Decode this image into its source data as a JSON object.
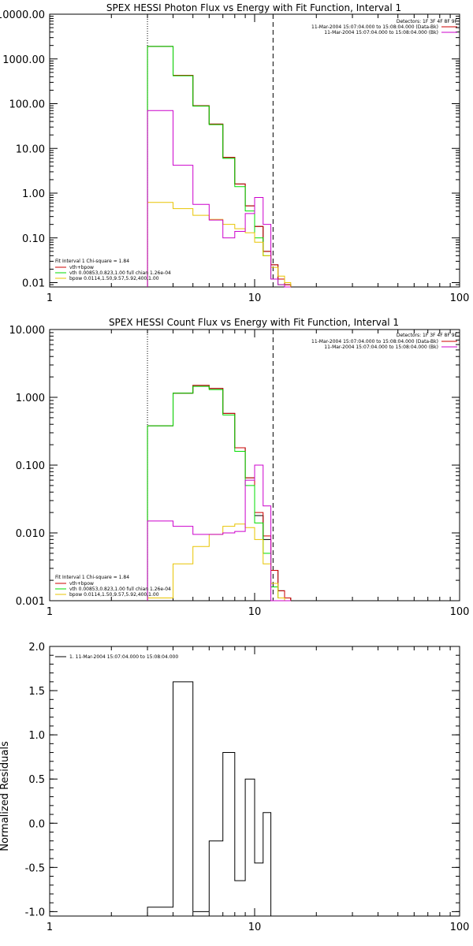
{
  "colors": {
    "data": "#000000",
    "total": "#cc0000",
    "vth": "#00dd00",
    "bpow": "#e8c400",
    "bkg": "#cc00cc"
  },
  "chart_data": [
    {
      "type": "line",
      "title": "SPEX HESSI Photon Flux vs Energy with Fit Function, Interval 1",
      "xscale": "log",
      "yscale": "log",
      "xlim": [
        1,
        100
      ],
      "ylim": [
        0.008,
        10000
      ],
      "xticks": [
        1,
        10,
        100
      ],
      "xtick_labels": [
        "1",
        "10",
        "100"
      ],
      "yticks": [
        0.01,
        0.1,
        1,
        10,
        100,
        1000,
        10000
      ],
      "ytick_labels": [
        "0.01",
        "0.10",
        "1.00",
        "10.00",
        "100.00",
        "1000.00",
        "10000.00"
      ],
      "vlines": [
        {
          "x": 3,
          "style": "dotted"
        },
        {
          "x": 12.3,
          "style": "dashed"
        }
      ],
      "bin_edges": [
        3,
        4,
        5,
        6,
        7,
        8,
        9,
        10,
        11,
        12,
        13,
        14,
        15
      ],
      "detectors_text": "Detectors: 1F 3F 4F 8F 9F",
      "legend_top": [
        {
          "text": "11-Mar-2004 15:07:04.000 to 15:08:04.000 (Data-Bk)",
          "color": "#cc0000"
        },
        {
          "text": "11-Mar-2004 15:07:04.000 to 15:08:04.000 (Bk)",
          "color": "#cc00cc"
        }
      ],
      "legend_bottom_header": "Fit Interval 1    Chi-square = 1.84",
      "legend_bottom": [
        {
          "text": "vth+bpow",
          "color": "#cc0000"
        },
        {
          "text": "vth 0.00853,0.823,1.00  full chian 1.26e-04",
          "color": "#00dd00"
        },
        {
          "text": "bpow 0.0114,1.50,9.57,5.92,400,1.00",
          "color": "#e8c400"
        }
      ],
      "series": [
        {
          "key": "data",
          "values": [
            1900,
            430,
            90,
            35,
            6.3,
            1.6,
            0.52,
            0.18,
            0.05,
            0.025,
            0.012,
            0.009
          ]
        },
        {
          "key": "total",
          "values": [
            1900,
            430,
            90,
            35,
            6.3,
            1.6,
            0.52,
            0.18,
            0.05,
            0.025,
            0.012,
            0.009
          ]
        },
        {
          "key": "vth",
          "values": [
            1900,
            420,
            88,
            34,
            6.0,
            1.4,
            0.4,
            0.1,
            0.04,
            0.012,
            0.009,
            0.008
          ]
        },
        {
          "key": "bpow",
          "values": [
            0.62,
            0.45,
            0.32,
            0.26,
            0.2,
            0.16,
            0.13,
            0.08,
            0.04,
            0.022,
            0.014,
            0.01
          ]
        },
        {
          "key": "bkg",
          "values": [
            70,
            4.2,
            0.56,
            0.25,
            0.1,
            0.14,
            0.35,
            0.8,
            0.2,
            0.012,
            0.009,
            0.008
          ]
        }
      ]
    },
    {
      "type": "line",
      "title": "SPEX HESSI Count Flux vs Energy with Fit Function, Interval 1",
      "xscale": "log",
      "yscale": "log",
      "xlim": [
        1,
        100
      ],
      "ylim": [
        0.001,
        10
      ],
      "xticks": [
        1,
        10,
        100
      ],
      "xtick_labels": [
        "1",
        "10",
        "100"
      ],
      "yticks": [
        0.001,
        0.01,
        0.1,
        1,
        10
      ],
      "ytick_labels": [
        "0.001",
        "0.010",
        "0.100",
        "1.000",
        "10.000"
      ],
      "vlines": [
        {
          "x": 3,
          "style": "dotted"
        },
        {
          "x": 12.3,
          "style": "dashed"
        }
      ],
      "bin_edges": [
        3,
        4,
        5,
        6,
        7,
        8,
        9,
        10,
        11,
        12,
        13,
        14,
        15
      ],
      "detectors_text": "Detectors: 1F 3F 4F 8F 9F",
      "legend_top": [
        {
          "text": "11-Mar-2004 15:07:04.000 to 15:08:04.000 (Data-Bk)",
          "color": "#cc0000"
        },
        {
          "text": "11-Mar-2004 15:07:04.000 to 15:08:04.000 (Bk)",
          "color": "#cc00cc"
        }
      ],
      "legend_bottom_header": "Fit Interval 1    Chi-square = 1.84",
      "legend_bottom": [
        {
          "text": "vth+bpow",
          "color": "#cc0000"
        },
        {
          "text": "vth 0.00853,0.823,1.00  full chian 1.26e-04",
          "color": "#00dd00"
        },
        {
          "text": "bpow 0.0114,1.50,9.57,5.92,400,1.00",
          "color": "#e8c400"
        }
      ],
      "series": [
        {
          "key": "data",
          "values": [
            0.38,
            1.15,
            1.5,
            1.35,
            0.58,
            0.18,
            0.065,
            0.018,
            0.008,
            0.0028,
            0.0014,
            0.0011
          ]
        },
        {
          "key": "total",
          "values": [
            0.38,
            1.15,
            1.5,
            1.35,
            0.58,
            0.18,
            0.065,
            0.02,
            0.009,
            0.0028,
            0.0014,
            0.0011
          ]
        },
        {
          "key": "vth",
          "values": [
            0.38,
            1.15,
            1.45,
            1.3,
            0.55,
            0.16,
            0.05,
            0.014,
            0.005,
            0.0016,
            0.0011,
            0.001
          ]
        },
        {
          "key": "bpow",
          "values": [
            0.0011,
            0.0035,
            0.0063,
            0.0095,
            0.0125,
            0.0135,
            0.012,
            0.008,
            0.0035,
            0.0018,
            0.0011,
            0.001
          ]
        },
        {
          "key": "bkg",
          "values": [
            0.015,
            0.0125,
            0.0095,
            0.0095,
            0.01,
            0.0105,
            0.06,
            0.1,
            0.025,
            0.001,
            0.001,
            0.001
          ]
        }
      ]
    },
    {
      "type": "line",
      "title": "",
      "ylabel": "Normalized Residuals",
      "xscale": "log",
      "yscale": "linear",
      "xlim": [
        1,
        100
      ],
      "ylim": [
        -1.05,
        2.0
      ],
      "xticks": [
        1,
        10,
        100
      ],
      "xtick_labels": [
        "1",
        "10",
        "100"
      ],
      "yticks": [
        -1.0,
        -0.5,
        0.0,
        0.5,
        1.0,
        1.5,
        2.0
      ],
      "ytick_labels": [
        "-1.0",
        "-0.5",
        "0.0",
        "0.5",
        "1.0",
        "1.5",
        "2.0"
      ],
      "legend_top_left": "1. 11-Mar-2004 15:07:04.000 to 15:08:04.000",
      "bin_edges": [
        3,
        4,
        5,
        6,
        7,
        8,
        9,
        10,
        11,
        12
      ],
      "series": [
        {
          "key": "data",
          "values": [
            -0.95,
            1.6,
            -1.0,
            -0.2,
            0.8,
            -0.65,
            0.5,
            -0.45,
            0.12
          ]
        }
      ]
    }
  ]
}
